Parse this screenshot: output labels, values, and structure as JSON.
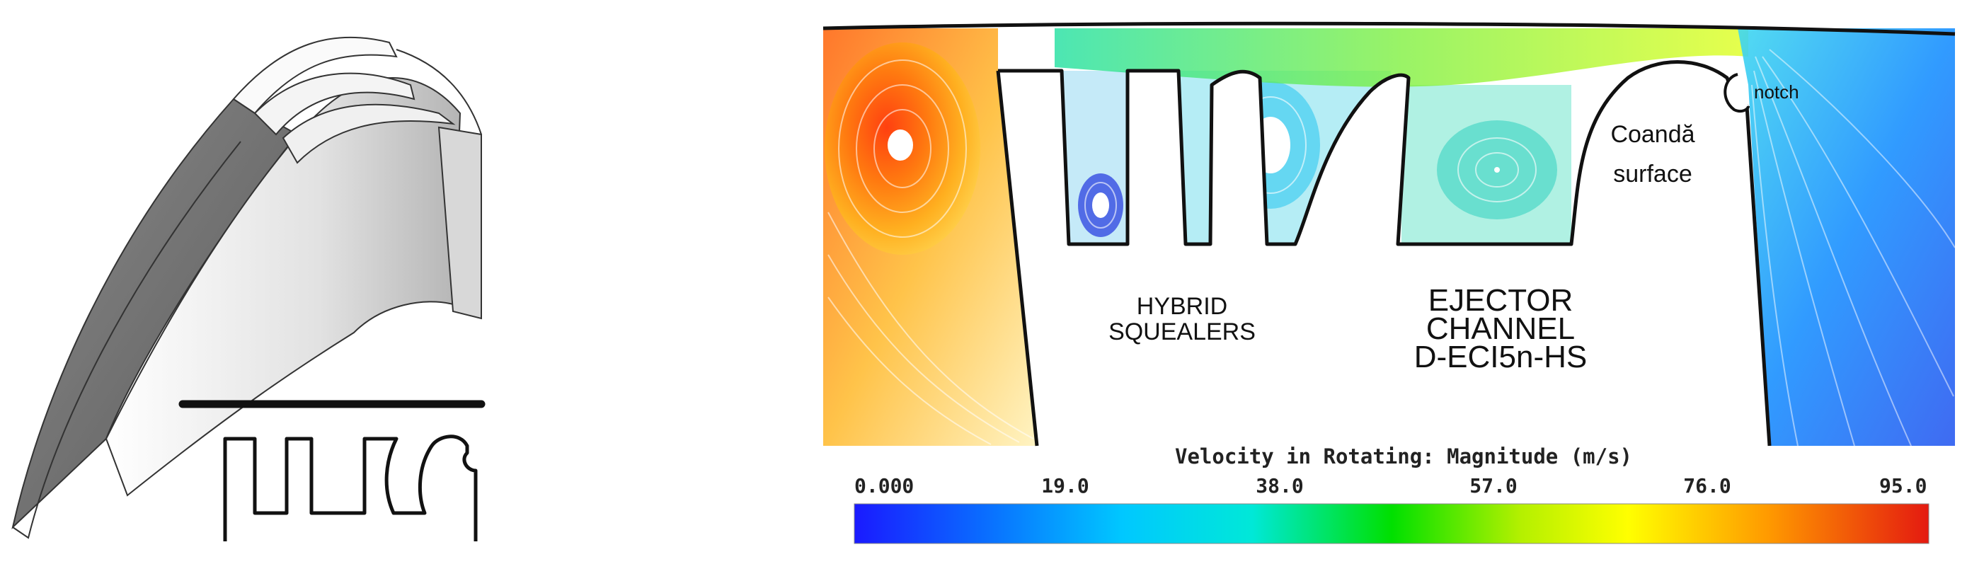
{
  "labels": {
    "hybrid_squealers": [
      "HYBRID",
      "SQUEALERS"
    ],
    "ejector_channel": [
      "EJECTOR",
      "CHANNEL",
      "D-ECI5n-HS"
    ],
    "coanda_surface": [
      "Coandă",
      "surface"
    ],
    "notch": "notch"
  },
  "colorbar": {
    "title": "Velocity in Rotating: Magnitude (m/s)",
    "ticks": [
      "0.000",
      "19.0",
      "38.0",
      "57.0",
      "76.0",
      "95.0"
    ],
    "min": 0,
    "max": 95,
    "colors": [
      "#1a1aff",
      "#00a8ff",
      "#00e5e5",
      "#00e000",
      "#c8f000",
      "#ffff00",
      "#ffb000",
      "#ff6000",
      "#e82010"
    ]
  },
  "colors": {
    "outline": "#111111",
    "blade_light": "#e8e8e8",
    "blade_dark": "#6a6a6a",
    "background": "#ffffff"
  }
}
